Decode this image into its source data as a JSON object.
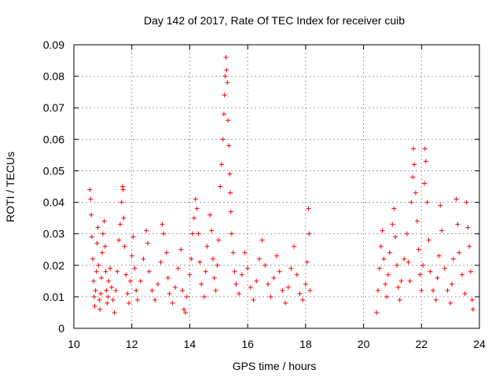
{
  "chart_data": {
    "type": "scatter",
    "title": "Day 142 of 2017, Rate Of TEC Index for receiver cuib",
    "xlabel": "GPS time / hours",
    "ylabel": "ROTI / TECUs",
    "xlim": [
      10,
      24
    ],
    "ylim": [
      0,
      0.09
    ],
    "x_ticks": [
      "10",
      "12",
      "14",
      "16",
      "18",
      "20",
      "22",
      "24"
    ],
    "y_ticks": [
      "0",
      "0.01",
      "0.02",
      "0.03",
      "0.04",
      "0.05",
      "0.06",
      "0.07",
      "0.08",
      "0.09"
    ],
    "grid": true,
    "marker": "+",
    "series": [
      {
        "name": "ROTI",
        "color": "#ff0000",
        "points": [
          [
            10.55,
            0.044
          ],
          [
            10.58,
            0.041
          ],
          [
            10.6,
            0.036
          ],
          [
            10.62,
            0.029
          ],
          [
            10.65,
            0.022
          ],
          [
            10.68,
            0.015
          ],
          [
            10.7,
            0.01
          ],
          [
            10.72,
            0.007
          ],
          [
            10.75,
            0.012
          ],
          [
            10.78,
            0.018
          ],
          [
            10.8,
            0.027
          ],
          [
            10.83,
            0.032
          ],
          [
            10.85,
            0.02
          ],
          [
            10.88,
            0.009
          ],
          [
            10.9,
            0.006
          ],
          [
            10.93,
            0.011
          ],
          [
            10.95,
            0.016
          ],
          [
            10.98,
            0.024
          ],
          [
            11.0,
            0.03
          ],
          [
            11.05,
            0.034
          ],
          [
            11.08,
            0.026
          ],
          [
            11.1,
            0.018
          ],
          [
            11.12,
            0.012
          ],
          [
            11.15,
            0.008
          ],
          [
            11.18,
            0.01
          ],
          [
            11.2,
            0.015
          ],
          [
            11.25,
            0.019
          ],
          [
            11.3,
            0.013
          ],
          [
            11.35,
            0.009
          ],
          [
            11.4,
            0.005
          ],
          [
            11.45,
            0.012
          ],
          [
            11.5,
            0.018
          ],
          [
            11.55,
            0.028
          ],
          [
            11.6,
            0.033
          ],
          [
            11.65,
            0.04
          ],
          [
            11.68,
            0.045
          ],
          [
            11.7,
            0.044
          ],
          [
            11.72,
            0.035
          ],
          [
            11.75,
            0.026
          ],
          [
            11.8,
            0.017
          ],
          [
            11.85,
            0.011
          ],
          [
            11.9,
            0.008
          ],
          [
            11.95,
            0.015
          ],
          [
            12.0,
            0.023
          ],
          [
            12.05,
            0.029
          ],
          [
            12.1,
            0.019
          ],
          [
            12.15,
            0.012
          ],
          [
            12.2,
            0.009
          ],
          [
            12.3,
            0.015
          ],
          [
            12.4,
            0.022
          ],
          [
            12.5,
            0.031
          ],
          [
            12.55,
            0.027
          ],
          [
            12.6,
            0.018
          ],
          [
            12.7,
            0.012
          ],
          [
            12.8,
            0.009
          ],
          [
            12.9,
            0.014
          ],
          [
            13.0,
            0.021
          ],
          [
            13.05,
            0.033
          ],
          [
            13.1,
            0.03
          ],
          [
            13.2,
            0.024
          ],
          [
            13.25,
            0.016
          ],
          [
            13.3,
            0.011
          ],
          [
            13.4,
            0.008
          ],
          [
            13.5,
            0.013
          ],
          [
            13.6,
            0.019
          ],
          [
            13.7,
            0.025
          ],
          [
            13.75,
            0.012
          ],
          [
            13.8,
            0.006
          ],
          [
            13.85,
            0.005
          ],
          [
            13.9,
            0.01
          ],
          [
            14.0,
            0.017
          ],
          [
            14.05,
            0.022
          ],
          [
            14.1,
            0.03
          ],
          [
            14.15,
            0.035
          ],
          [
            14.2,
            0.041
          ],
          [
            14.25,
            0.038
          ],
          [
            14.3,
            0.03
          ],
          [
            14.35,
            0.021
          ],
          [
            14.4,
            0.014
          ],
          [
            14.5,
            0.01
          ],
          [
            14.55,
            0.018
          ],
          [
            14.6,
            0.026
          ],
          [
            14.7,
            0.036
          ],
          [
            14.75,
            0.031
          ],
          [
            14.8,
            0.022
          ],
          [
            14.85,
            0.016
          ],
          [
            14.9,
            0.012
          ],
          [
            14.95,
            0.02
          ],
          [
            15.0,
            0.028
          ],
          [
            15.05,
            0.045
          ],
          [
            15.1,
            0.052
          ],
          [
            15.15,
            0.06
          ],
          [
            15.18,
            0.068
          ],
          [
            15.2,
            0.074
          ],
          [
            15.22,
            0.08
          ],
          [
            15.25,
            0.086
          ],
          [
            15.27,
            0.082
          ],
          [
            15.3,
            0.078
          ],
          [
            15.32,
            0.066
          ],
          [
            15.35,
            0.058
          ],
          [
            15.38,
            0.049
          ],
          [
            15.4,
            0.043
          ],
          [
            15.42,
            0.037
          ],
          [
            15.45,
            0.03
          ],
          [
            15.5,
            0.024
          ],
          [
            15.55,
            0.018
          ],
          [
            15.6,
            0.014
          ],
          [
            15.7,
            0.011
          ],
          [
            15.8,
            0.017
          ],
          [
            15.9,
            0.024
          ],
          [
            16.0,
            0.019
          ],
          [
            16.1,
            0.013
          ],
          [
            16.2,
            0.009
          ],
          [
            16.3,
            0.015
          ],
          [
            16.4,
            0.022
          ],
          [
            16.5,
            0.028
          ],
          [
            16.6,
            0.02
          ],
          [
            16.7,
            0.014
          ],
          [
            16.8,
            0.01
          ],
          [
            16.9,
            0.016
          ],
          [
            17.0,
            0.023
          ],
          [
            17.1,
            0.018
          ],
          [
            17.2,
            0.012
          ],
          [
            17.3,
            0.008
          ],
          [
            17.4,
            0.013
          ],
          [
            17.5,
            0.019
          ],
          [
            17.6,
            0.026
          ],
          [
            17.7,
            0.017
          ],
          [
            17.8,
            0.011
          ],
          [
            17.9,
            0.009
          ],
          [
            18.0,
            0.014
          ],
          [
            18.05,
            0.021
          ],
          [
            18.1,
            0.038
          ],
          [
            18.12,
            0.03
          ],
          [
            18.15,
            0.012
          ],
          [
            20.45,
            0.005
          ],
          [
            20.5,
            0.012
          ],
          [
            20.55,
            0.019
          ],
          [
            20.6,
            0.026
          ],
          [
            20.65,
            0.031
          ],
          [
            20.7,
            0.022
          ],
          [
            20.75,
            0.014
          ],
          [
            20.8,
            0.01
          ],
          [
            20.85,
            0.017
          ],
          [
            20.9,
            0.024
          ],
          [
            21.0,
            0.033
          ],
          [
            21.05,
            0.038
          ],
          [
            21.1,
            0.029
          ],
          [
            21.15,
            0.02
          ],
          [
            21.2,
            0.013
          ],
          [
            21.25,
            0.009
          ],
          [
            21.3,
            0.015
          ],
          [
            21.4,
            0.022
          ],
          [
            21.5,
            0.03
          ],
          [
            21.55,
            0.021
          ],
          [
            21.6,
            0.015
          ],
          [
            21.65,
            0.04
          ],
          [
            21.7,
            0.048
          ],
          [
            21.72,
            0.057
          ],
          [
            21.75,
            0.052
          ],
          [
            21.8,
            0.043
          ],
          [
            21.85,
            0.034
          ],
          [
            21.9,
            0.025
          ],
          [
            21.95,
            0.017
          ],
          [
            22.0,
            0.012
          ],
          [
            22.05,
            0.02
          ],
          [
            22.1,
            0.046
          ],
          [
            22.12,
            0.057
          ],
          [
            22.15,
            0.053
          ],
          [
            22.2,
            0.04
          ],
          [
            22.25,
            0.028
          ],
          [
            22.3,
            0.018
          ],
          [
            22.4,
            0.012
          ],
          [
            22.5,
            0.009
          ],
          [
            22.55,
            0.016
          ],
          [
            22.6,
            0.023
          ],
          [
            22.65,
            0.039
          ],
          [
            22.7,
            0.031
          ],
          [
            22.8,
            0.019
          ],
          [
            22.9,
            0.012
          ],
          [
            23.0,
            0.008
          ],
          [
            23.05,
            0.014
          ],
          [
            23.1,
            0.022
          ],
          [
            23.2,
            0.041
          ],
          [
            23.25,
            0.033
          ],
          [
            23.3,
            0.024
          ],
          [
            23.4,
            0.017
          ],
          [
            23.5,
            0.011
          ],
          [
            23.55,
            0.04
          ],
          [
            23.6,
            0.032
          ],
          [
            23.65,
            0.026
          ],
          [
            23.7,
            0.018
          ],
          [
            23.75,
            0.009
          ],
          [
            23.78,
            0.006
          ]
        ]
      }
    ]
  }
}
